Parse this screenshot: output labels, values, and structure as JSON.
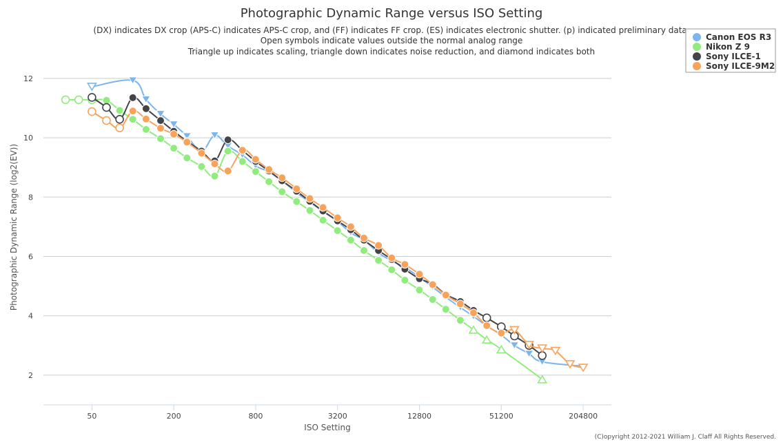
{
  "chart_data": {
    "type": "line",
    "title": "Photographic Dynamic Range versus ISO Setting",
    "subtitle": [
      "(DX) indicates DX crop (APS-C) indicates APS-C crop, and (FF) indicates FF crop. (ES) indicates electronic shutter. (p) indicated preliminary data.",
      "Open symbols indicate values outside the normal analog range",
      "Triangle up indicates scaling, triangle down indicates noise reduction, and diamond indicates both"
    ],
    "xlabel": "ISO Setting",
    "ylabel": "Photographic Dynamic Range (log2(EV))",
    "x_scale": "log2",
    "x_ticks": [
      50,
      200,
      800,
      3200,
      12800,
      51200,
      204800
    ],
    "xlim": [
      22,
      330000
    ],
    "y_ticks": [
      2,
      4,
      6,
      8,
      10,
      12
    ],
    "ylim": [
      1,
      12.6
    ],
    "grid": true,
    "legend_position": "top-right",
    "credit": "(C)opyright 2012-2021 William J. Claff All Rights Reserved.",
    "series": [
      {
        "name": "Canon EOS R3",
        "color": "#7cb5ec",
        "x": [
          50,
          100,
          125,
          160,
          200,
          250,
          320,
          400,
          500,
          640,
          800,
          1000,
          1250,
          1600,
          2000,
          2500,
          3200,
          4000,
          5000,
          6400,
          8000,
          10000,
          12800,
          16000,
          20000,
          25600,
          32000,
          40000,
          51200,
          64000,
          81920,
          102400,
          204800
        ],
        "y": [
          11.72,
          11.93,
          11.29,
          10.8,
          10.45,
          10.05,
          9.55,
          10.08,
          9.72,
          9.42,
          9.05,
          8.85,
          8.55,
          8.15,
          7.83,
          7.52,
          7.18,
          6.8,
          6.55,
          6.12,
          5.85,
          5.63,
          5.3,
          4.97,
          4.63,
          4.28,
          3.98,
          3.66,
          3.35,
          3.0,
          2.72,
          2.45,
          2.3
        ],
        "markers": [
          "tri-down-open",
          "tri-down",
          "tri-down",
          "tri-down",
          "tri-down",
          "tri-down",
          "tri-down",
          "tri-down",
          "tri-down",
          "tri-down",
          "tri-down",
          "tri-down",
          "tri-down",
          "tri-down",
          "tri-down",
          "tri-down",
          "tri-down",
          "tri-down",
          "tri-down",
          "tri-down",
          "tri-down",
          "tri-down",
          "tri-down",
          "tri-down",
          "tri-down",
          "tri-down",
          "tri-down",
          "tri-down",
          "tri-down",
          "tri-down",
          "tri-down",
          "tri-down",
          "none"
        ]
      },
      {
        "name": "Nikon Z 9",
        "color": "#90ed7d",
        "x": [
          32,
          40,
          50,
          64,
          80,
          100,
          125,
          160,
          200,
          250,
          320,
          400,
          500,
          640,
          800,
          1000,
          1250,
          1600,
          2000,
          2500,
          3200,
          4000,
          5000,
          6400,
          8000,
          10000,
          12800,
          16000,
          20000,
          25600,
          32000,
          40000,
          51200,
          102400
        ],
        "y": [
          11.28,
          11.28,
          11.28,
          11.26,
          10.92,
          10.62,
          10.28,
          9.97,
          9.65,
          9.32,
          9.03,
          8.71,
          9.55,
          9.2,
          8.86,
          8.52,
          8.18,
          7.85,
          7.55,
          7.22,
          6.87,
          6.55,
          6.2,
          5.87,
          5.55,
          5.2,
          4.87,
          4.55,
          4.22,
          3.85,
          3.53,
          3.2,
          2.87,
          1.86
        ],
        "markers": [
          "circle-open",
          "circle-open",
          "circle-open",
          "circle",
          "circle",
          "circle",
          "circle",
          "circle",
          "circle",
          "circle",
          "circle",
          "circle",
          "circle",
          "circle",
          "circle",
          "circle",
          "circle",
          "circle",
          "circle",
          "circle",
          "circle",
          "circle",
          "circle",
          "circle",
          "circle",
          "circle",
          "circle",
          "circle",
          "circle",
          "circle",
          "tri-up-open",
          "tri-up-open",
          "tri-up-open",
          "tri-up-open"
        ]
      },
      {
        "name": "Sony ILCE-1",
        "color": "#434348",
        "x": [
          50,
          64,
          80,
          100,
          125,
          160,
          200,
          250,
          320,
          400,
          500,
          640,
          800,
          1000,
          1250,
          1600,
          2000,
          2500,
          3200,
          4000,
          5000,
          6400,
          8000,
          10000,
          12800,
          16000,
          20000,
          25600,
          32000,
          40000,
          51200,
          64000,
          81920,
          102400
        ],
        "y": [
          11.36,
          11.02,
          10.62,
          11.35,
          10.98,
          10.58,
          10.22,
          9.88,
          9.55,
          9.22,
          9.93,
          9.57,
          9.2,
          8.88,
          8.55,
          8.2,
          7.86,
          7.53,
          7.2,
          6.9,
          6.55,
          6.2,
          5.9,
          5.57,
          5.25,
          5.07,
          4.72,
          4.48,
          4.18,
          3.93,
          3.63,
          3.32,
          3.0,
          2.66
        ],
        "markers": [
          "circle-open",
          "circle-open",
          "circle-open",
          "circle",
          "circle",
          "circle",
          "circle",
          "circle",
          "circle",
          "circle",
          "circle",
          "circle",
          "circle",
          "circle",
          "circle",
          "circle",
          "circle",
          "circle",
          "circle",
          "circle",
          "circle",
          "circle",
          "circle",
          "circle",
          "circle",
          "circle",
          "circle",
          "circle",
          "circle",
          "circle-open",
          "circle-open",
          "circle-open",
          "circle-open",
          "circle-open"
        ]
      },
      {
        "name": "Sony ILCE-9M2",
        "color": "#f7a35c",
        "x": [
          50,
          64,
          80,
          100,
          125,
          160,
          200,
          250,
          320,
          400,
          500,
          640,
          800,
          1000,
          1250,
          1600,
          2000,
          2500,
          3200,
          4000,
          5000,
          6400,
          8000,
          10000,
          12800,
          16000,
          20000,
          25600,
          32000,
          40000,
          51200,
          64000,
          81920,
          102400,
          128000,
          163840,
          204800
        ],
        "y": [
          10.88,
          10.58,
          10.33,
          10.9,
          10.63,
          10.32,
          10.12,
          9.85,
          9.48,
          9.12,
          8.88,
          9.58,
          9.27,
          8.93,
          8.65,
          8.28,
          7.95,
          7.65,
          7.3,
          7.0,
          6.62,
          6.37,
          5.95,
          5.73,
          5.4,
          5.05,
          4.7,
          4.4,
          4.1,
          3.67,
          3.42,
          3.52,
          3.02,
          2.9,
          2.82,
          2.37,
          2.25
        ],
        "markers": [
          "circle-open",
          "circle-open",
          "circle-open",
          "circle",
          "circle",
          "circle",
          "circle",
          "circle",
          "circle",
          "circle",
          "circle",
          "circle",
          "circle",
          "circle",
          "circle",
          "circle",
          "circle",
          "circle",
          "circle",
          "circle",
          "circle",
          "circle",
          "circle",
          "circle",
          "circle",
          "circle",
          "circle",
          "circle",
          "circle",
          "circle",
          "circle",
          "tri-down-open",
          "tri-down-open",
          "tri-down-open",
          "tri-down-open",
          "tri-down-open",
          "tri-down-open"
        ]
      }
    ]
  }
}
